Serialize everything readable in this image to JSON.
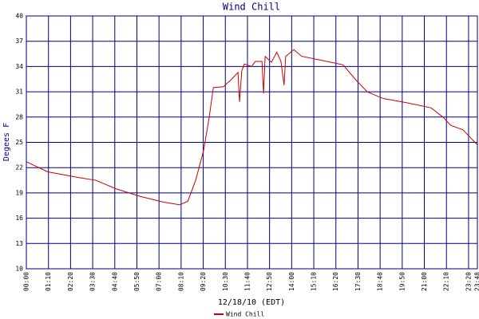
{
  "chart_data": {
    "type": "line",
    "title": "Wind Chill",
    "x_label": "12/18/10 (EDT)",
    "y_label": "Degees F",
    "xlim": [
      0,
      1428
    ],
    "xticks": [
      {
        "value": 0,
        "label": "00:00"
      },
      {
        "value": 70,
        "label": "01:10"
      },
      {
        "value": 140,
        "label": "02:20"
      },
      {
        "value": 210,
        "label": "03:30"
      },
      {
        "value": 280,
        "label": "04:40"
      },
      {
        "value": 350,
        "label": "05:50"
      },
      {
        "value": 420,
        "label": "07:00"
      },
      {
        "value": 490,
        "label": "08:10"
      },
      {
        "value": 560,
        "label": "09:20"
      },
      {
        "value": 630,
        "label": "10:30"
      },
      {
        "value": 700,
        "label": "11:40"
      },
      {
        "value": 770,
        "label": "12:50"
      },
      {
        "value": 840,
        "label": "14:00"
      },
      {
        "value": 910,
        "label": "15:10"
      },
      {
        "value": 980,
        "label": "16:20"
      },
      {
        "value": 1050,
        "label": "17:30"
      },
      {
        "value": 1120,
        "label": "18:40"
      },
      {
        "value": 1190,
        "label": "19:50"
      },
      {
        "value": 1260,
        "label": "21:00"
      },
      {
        "value": 1330,
        "label": "22:10"
      },
      {
        "value": 1400,
        "label": "23:20"
      },
      {
        "value": 1428,
        "label": "23:48"
      }
    ],
    "ylim": [
      10,
      40
    ],
    "yticks": [
      10,
      13,
      16,
      19,
      22,
      25,
      28,
      31,
      34,
      37,
      40
    ],
    "grid": true,
    "legend": "bottom",
    "x": [
      0,
      68,
      169,
      220,
      283,
      359,
      435,
      485,
      511,
      536,
      561,
      579,
      592,
      624,
      650,
      670,
      675,
      682,
      690,
      713,
      725,
      746,
      751,
      756,
      776,
      793,
      806,
      816,
      821,
      847,
      872,
      927,
      965,
      1003,
      1041,
      1079,
      1130,
      1205,
      1281,
      1319,
      1344,
      1382,
      1428
    ],
    "series": [
      {
        "name": "Wind Chill",
        "color": "#cc0000",
        "values": [
          22.7,
          21.5,
          20.8,
          20.5,
          19.5,
          18.6,
          17.9,
          17.6,
          18.0,
          20.5,
          24,
          28,
          31.5,
          31.6,
          32.5,
          33.3,
          29.8,
          33.5,
          34.3,
          34.0,
          34.6,
          34.6,
          30.8,
          35.2,
          34.5,
          35.7,
          34.6,
          31.8,
          35.2,
          36.0,
          35.2,
          34.8,
          34.5,
          34.2,
          32.5,
          31.0,
          30.2,
          29.7,
          29.1,
          28,
          27.0,
          26.5,
          24.7
        ]
      }
    ]
  }
}
